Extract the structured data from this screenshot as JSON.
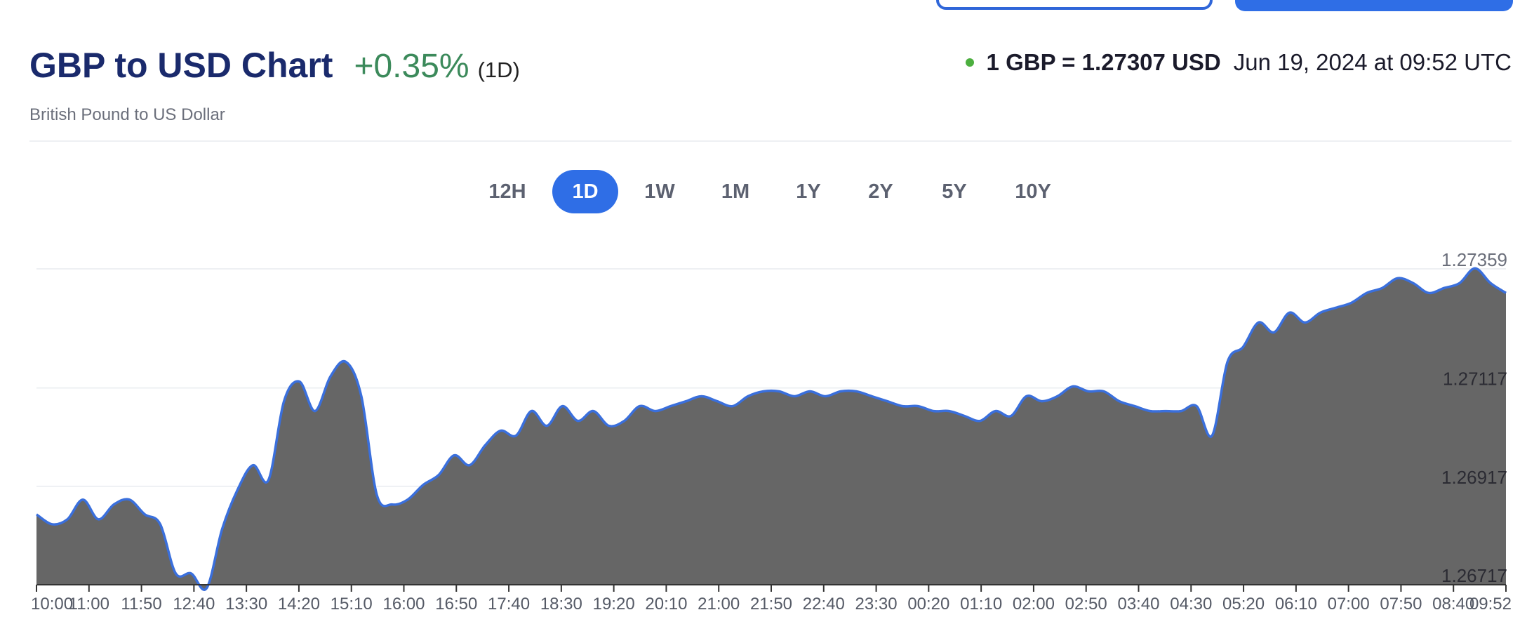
{
  "header": {
    "title": "GBP to USD Chart",
    "change": "+0.35%",
    "period": "(1D)",
    "subtitle": "British Pound to US Dollar",
    "rate": "1 GBP = 1.27307 USD",
    "timestamp": "Jun 19, 2024 at 09:52 UTC",
    "status_color": "#4caf3f"
  },
  "tabs": [
    {
      "label": "12H",
      "active": false
    },
    {
      "label": "1D",
      "active": true
    },
    {
      "label": "1W",
      "active": false
    },
    {
      "label": "1M",
      "active": false
    },
    {
      "label": "1Y",
      "active": false
    },
    {
      "label": "2Y",
      "active": false
    },
    {
      "label": "5Y",
      "active": false
    },
    {
      "label": "10Y",
      "active": false
    }
  ],
  "colors": {
    "accent": "#2f6ee6",
    "line": "#3a6fdc",
    "area": "#666666",
    "title": "#1a2a6c",
    "positive": "#3c8a5b"
  },
  "chart_data": {
    "type": "area",
    "title": "GBP to USD Chart",
    "ylabel": "",
    "xlabel": "",
    "y_ticks": [
      "1.27359",
      "1.27117",
      "1.26917",
      "1.26717"
    ],
    "y_tick_values": [
      1.27359,
      1.27117,
      1.26917,
      1.26717
    ],
    "ylim": [
      1.26717,
      1.27359
    ],
    "x_tick_labels": [
      "10:00",
      "11:00",
      "11:50",
      "12:40",
      "13:30",
      "14:20",
      "15:10",
      "16:00",
      "16:50",
      "17:40",
      "18:30",
      "19:20",
      "20:10",
      "21:00",
      "21:50",
      "22:40",
      "23:30",
      "00:20",
      "01:10",
      "02:00",
      "02:50",
      "03:40",
      "04:30",
      "05:20",
      "06:10",
      "07:00",
      "07:50",
      "08:40",
      "09:52"
    ],
    "grid": true,
    "series": [
      {
        "values": [
          1.2686,
          1.2684,
          1.2685,
          1.2689,
          1.2685,
          1.2688,
          1.2689,
          1.2686,
          1.2684,
          1.2674,
          1.2674,
          1.2671,
          1.2683,
          1.2691,
          1.2696,
          1.2693,
          1.2709,
          1.2713,
          1.2707,
          1.2714,
          1.2717,
          1.271,
          1.269,
          1.2688,
          1.2689,
          1.2692,
          1.2694,
          1.2698,
          1.2696,
          1.27,
          1.2703,
          1.2702,
          1.2707,
          1.2704,
          1.2708,
          1.2705,
          1.2707,
          1.2704,
          1.2705,
          1.2708,
          1.2707,
          1.2708,
          1.2709,
          1.271,
          1.2709,
          1.2708,
          1.271,
          1.2711,
          1.2711,
          1.271,
          1.2711,
          1.271,
          1.2711,
          1.2711,
          1.271,
          1.2709,
          1.2708,
          1.2708,
          1.2707,
          1.2707,
          1.2706,
          1.2705,
          1.2707,
          1.2706,
          1.271,
          1.2709,
          1.271,
          1.2712,
          1.2711,
          1.2711,
          1.2709,
          1.2708,
          1.2707,
          1.2707,
          1.2707,
          1.2708,
          1.2702,
          1.2717,
          1.272,
          1.2725,
          1.2723,
          1.2727,
          1.2725,
          1.2727,
          1.2728,
          1.2729,
          1.2731,
          1.2732,
          1.2734,
          1.2733,
          1.2731,
          1.2732,
          1.2733,
          1.2736,
          1.2733,
          1.2731
        ]
      }
    ]
  }
}
